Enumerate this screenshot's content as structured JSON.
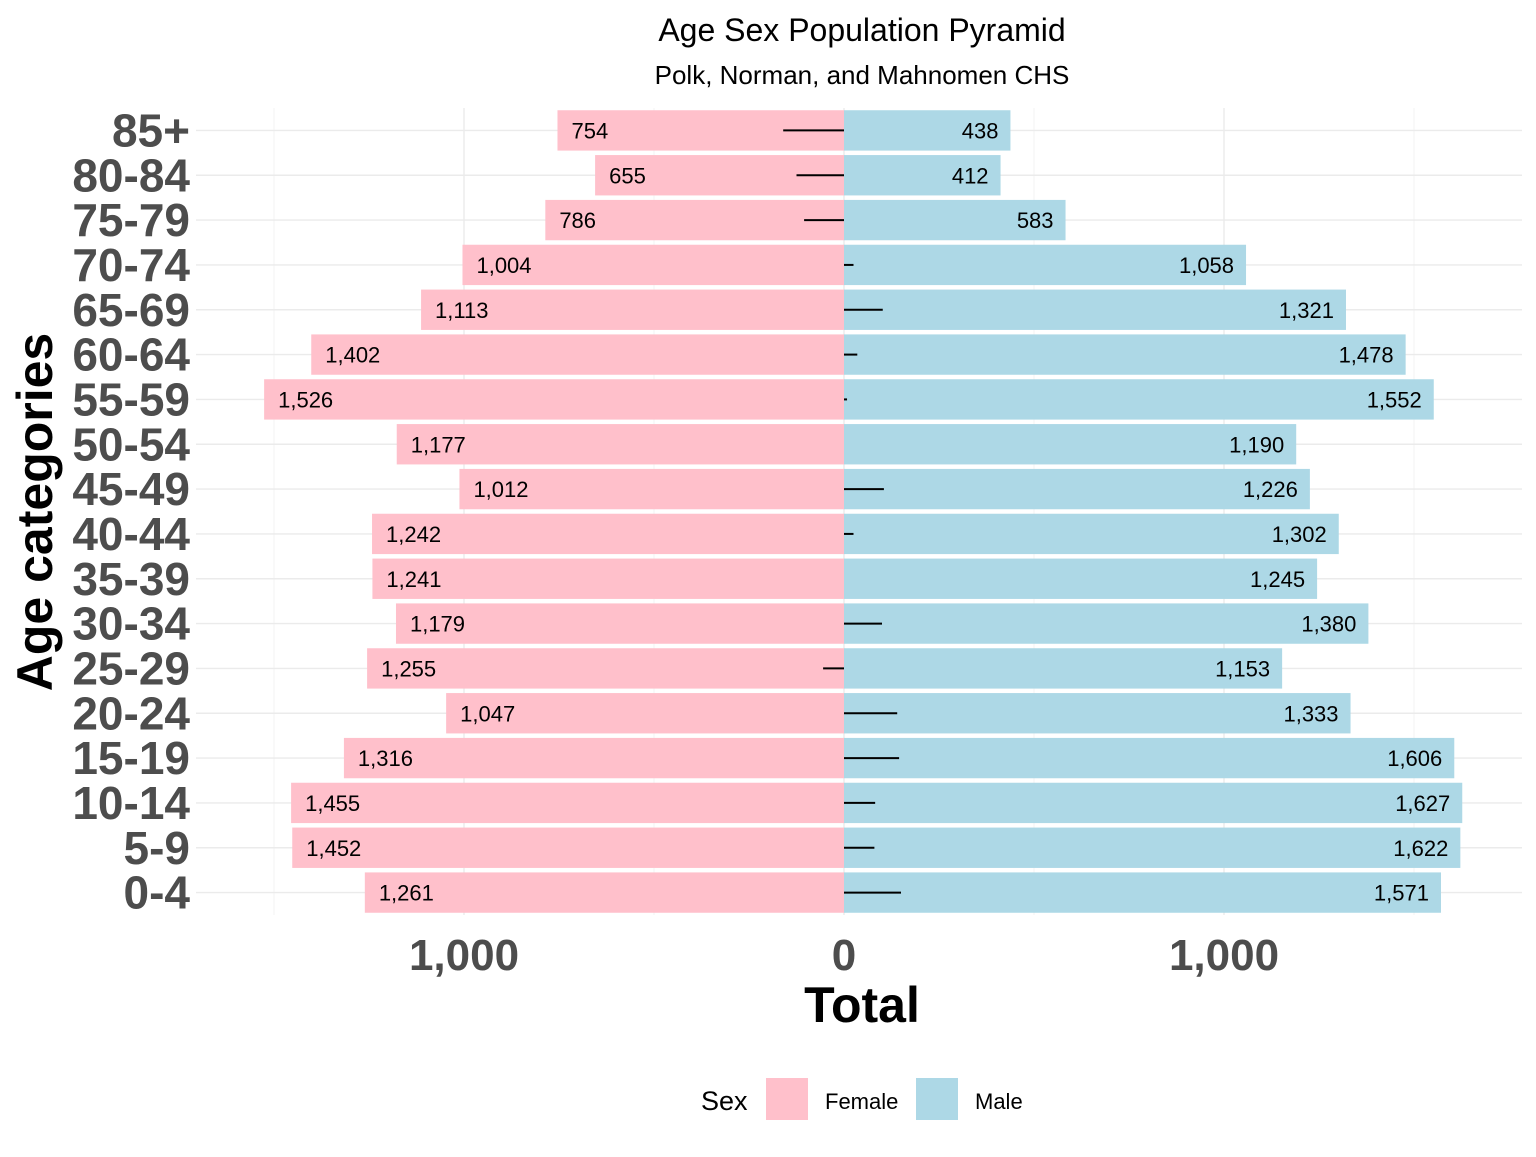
{
  "chart_data": {
    "type": "bar",
    "orientation": "horizontal",
    "layout": "population-pyramid",
    "title": "Age Sex Population Pyramid",
    "subtitle": "Polk, Norman, and Mahnomen CHS",
    "xlabel": "Total",
    "ylabel": "Age categories",
    "xlim": [
      -1500,
      1790
    ],
    "x_ticks": [
      {
        "value": -1000,
        "label": "1,000"
      },
      {
        "value": 0,
        "label": "0"
      },
      {
        "value": 1000,
        "label": "1,000"
      }
    ],
    "grid": true,
    "categories": [
      "0-4",
      "5-9",
      "10-14",
      "15-19",
      "20-24",
      "25-29",
      "30-34",
      "35-39",
      "40-44",
      "45-49",
      "50-54",
      "55-59",
      "60-64",
      "65-69",
      "70-74",
      "75-79",
      "80-84",
      "85+"
    ],
    "series": [
      {
        "name": "Female",
        "color": "#ffc0cb",
        "side": "left",
        "values": [
          1261,
          1452,
          1455,
          1316,
          1047,
          1255,
          1179,
          1241,
          1242,
          1012,
          1177,
          1526,
          1402,
          1113,
          1004,
          786,
          655,
          754
        ],
        "labels": [
          "1,261",
          "1,452",
          "1,455",
          "1,316",
          "1,047",
          "1,255",
          "1,179",
          "1,241",
          "1,242",
          "1,012",
          "1,177",
          "1,526",
          "1,402",
          "1,113",
          "1,004",
          "786",
          "655",
          "754"
        ]
      },
      {
        "name": "Male",
        "color": "#add8e6",
        "side": "right",
        "values": [
          1571,
          1622,
          1627,
          1606,
          1333,
          1153,
          1380,
          1245,
          1302,
          1226,
          1190,
          1552,
          1478,
          1321,
          1058,
          583,
          412,
          438
        ],
        "labels": [
          "1,571",
          "1,622",
          "1,627",
          "1,606",
          "1,333",
          "1,153",
          "1,380",
          "1,245",
          "1,302",
          "1,226",
          "1,190",
          "1,552",
          "1,478",
          "1,321",
          "1,058",
          "583",
          "412",
          "438"
        ]
      }
    ],
    "difference_segments": {
      "color": "#000000",
      "values": [
        150,
        80,
        82,
        145,
        140,
        -55,
        100,
        0,
        25,
        105,
        0,
        8,
        35,
        102,
        25,
        -105,
        -125,
        -160
      ]
    },
    "legend": {
      "title": "Sex",
      "position": "bottom",
      "items": [
        {
          "label": "Female",
          "color": "#ffc0cb"
        },
        {
          "label": "Male",
          "color": "#add8e6"
        }
      ]
    }
  }
}
